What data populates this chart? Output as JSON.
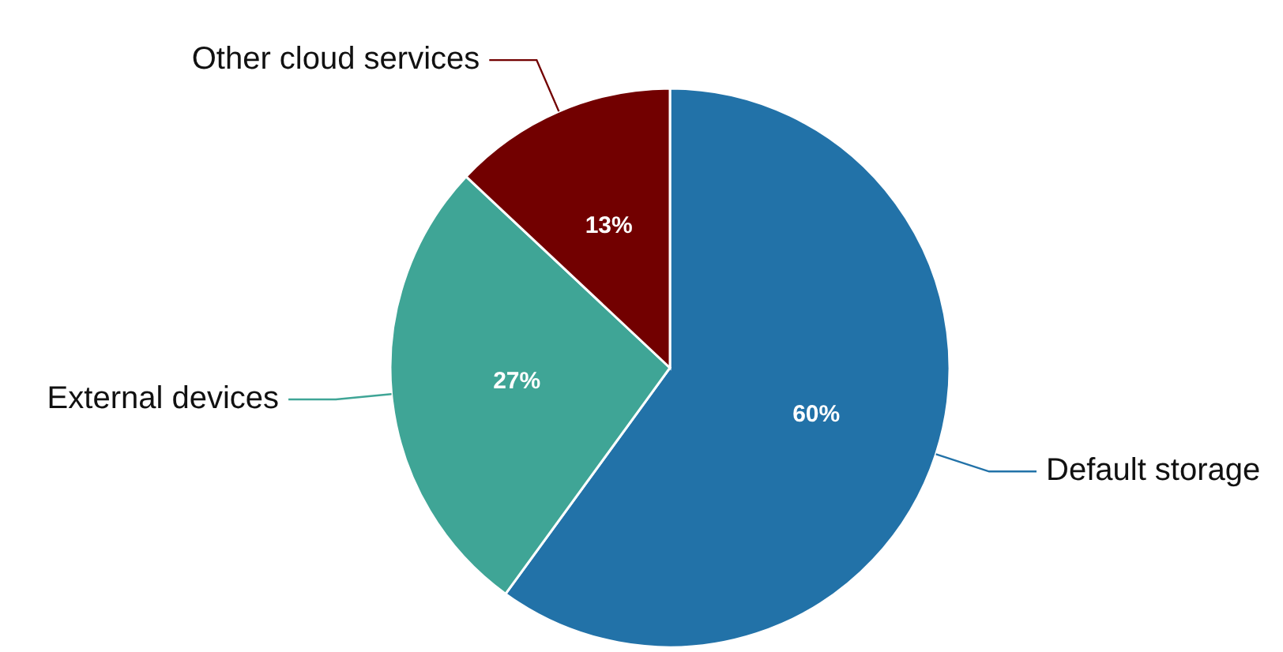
{
  "chart_data": {
    "type": "pie",
    "categories": [
      "Default storage",
      "External devices",
      "Other cloud services"
    ],
    "values": [
      60,
      27,
      13
    ],
    "colors": [
      "#2272a8",
      "#3fa596",
      "#720000"
    ],
    "value_labels": [
      "60%",
      "27%",
      "13%"
    ]
  }
}
